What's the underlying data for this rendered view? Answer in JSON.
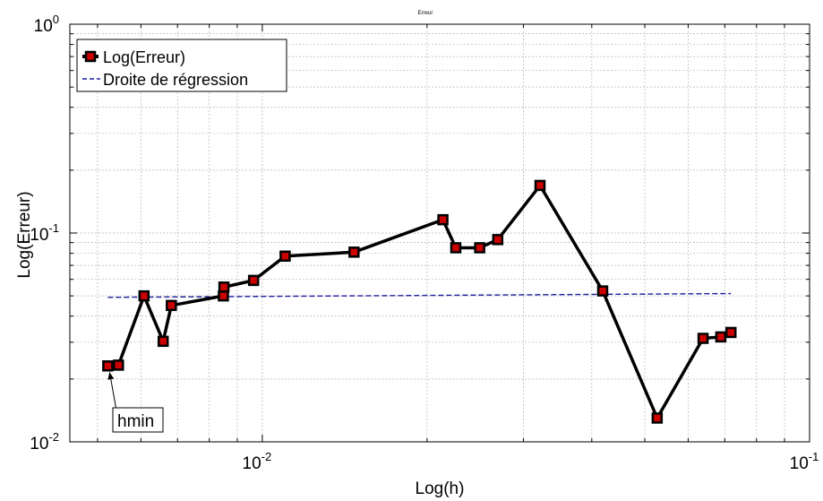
{
  "chart_data": {
    "type": "line",
    "title": "Erreur",
    "xlabel": "Log(h)",
    "ylabel": "Log(Erreur)",
    "xscale": "log",
    "yscale": "log",
    "xlim": [
      0.00445,
      0.1
    ],
    "ylim": [
      0.01,
      1
    ],
    "grid": true,
    "legend_position": "top-left",
    "x_ticks": [
      {
        "value": 0.01,
        "base": "10",
        "exp": "-2"
      },
      {
        "value": 0.1,
        "base": "10",
        "exp": "-1"
      }
    ],
    "y_ticks": [
      {
        "value": 0.01,
        "base": "10",
        "exp": "-2"
      },
      {
        "value": 0.1,
        "base": "10",
        "exp": "-1"
      },
      {
        "value": 1,
        "base": "10",
        "exp": "0"
      }
    ],
    "series": [
      {
        "name": "Log(Erreur)",
        "style": "solid-markers",
        "color": "#000000",
        "marker_color": "#cc0000",
        "x": [
          0.00522,
          0.00546,
          0.00608,
          0.00659,
          0.00682,
          0.00849,
          0.00851,
          0.00964,
          0.01101,
          0.01471,
          0.02138,
          0.02257,
          0.02496,
          0.02693,
          0.03217,
          0.04188,
          0.05267,
          0.06388,
          0.06884,
          0.07184
        ],
        "y": [
          0.0231,
          0.0233,
          0.05,
          0.0303,
          0.045,
          0.05,
          0.0551,
          0.0593,
          0.0775,
          0.081,
          0.1158,
          0.085,
          0.085,
          0.093,
          0.169,
          0.0528,
          0.013,
          0.0313,
          0.0318,
          0.0334
        ]
      },
      {
        "name": "Droite de régression",
        "style": "dashed",
        "color": "#1f1f9e",
        "x": [
          0.00522,
          0.07184
        ],
        "y": [
          0.0492,
          0.0513
        ]
      }
    ],
    "annotations": [
      {
        "text": "hmin",
        "x": 0.00522,
        "y": 0.0231
      }
    ]
  }
}
